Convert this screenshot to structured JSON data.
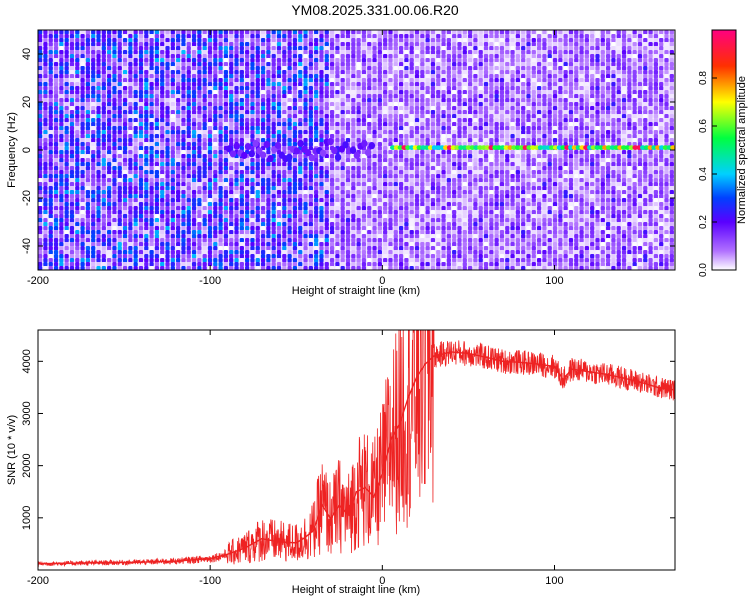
{
  "title": "YM08.2025.331.00.06.R20",
  "chart_data": [
    {
      "type": "heatmap",
      "title": "YM08.2025.331.00.06.R20",
      "xlabel": "Height of straight line (km)",
      "ylabel": "Frequency (Hz)",
      "xlim": [
        -200,
        170
      ],
      "ylim": [
        -50,
        50
      ],
      "x_ticks": [
        -200,
        -100,
        0,
        100
      ],
      "y_ticks": [
        -40,
        -20,
        0,
        20,
        40
      ],
      "colorbar": {
        "label": "Normalized spectral amplitude",
        "range": [
          0,
          1
        ],
        "ticks": [
          0.0,
          0.2,
          0.4,
          0.6,
          0.8
        ],
        "tick_labels": [
          "0.0",
          "0.2",
          "0.4",
          "0.6",
          "0.8"
        ],
        "colors": [
          "#ffffff",
          "#7b00ff",
          "#0000ff",
          "#00ffff",
          "#00ff00",
          "#ffff00",
          "#ff0000",
          "#ff00ff"
        ]
      },
      "features": [
        {
          "name": "",
          "x_start": 5,
          "x_end": 170,
          "frequency": 1,
          "amplitude": 0.65
        },
        {
          "name": "",
          "x_start": -90,
          "x_end": -5,
          "frequency": 0,
          "amplitude": 0.2
        }
      ]
    },
    {
      "type": "line",
      "xlabel": "Height of straight line (km)",
      "ylabel": "SNR (10 * v/v)",
      "xlim": [
        -200,
        170
      ],
      "ylim": [
        0,
        4600
      ],
      "x_ticks": [
        -200,
        -100,
        0,
        100
      ],
      "y_ticks": [
        1000,
        2000,
        3000,
        4000
      ],
      "color": "#ee2222",
      "x": [
        -200,
        -180,
        -160,
        -140,
        -120,
        -100,
        -90,
        -80,
        -70,
        -60,
        -50,
        -45,
        -40,
        -35,
        -30,
        -25,
        -20,
        -15,
        -10,
        -5,
        0,
        5,
        10,
        15,
        20,
        25,
        30,
        40,
        50,
        60,
        70,
        80,
        90,
        100,
        105,
        110,
        120,
        130,
        140,
        150,
        160,
        170
      ],
      "y": [
        120,
        130,
        140,
        150,
        170,
        220,
        300,
        420,
        600,
        540,
        520,
        620,
        760,
        1250,
        980,
        1250,
        1050,
        1500,
        1580,
        1400,
        1850,
        2500,
        2800,
        3300,
        3700,
        3950,
        4100,
        4180,
        4150,
        4080,
        4000,
        3980,
        3950,
        3900,
        3650,
        3850,
        3800,
        3750,
        3680,
        3600,
        3500,
        3450
      ]
    }
  ]
}
